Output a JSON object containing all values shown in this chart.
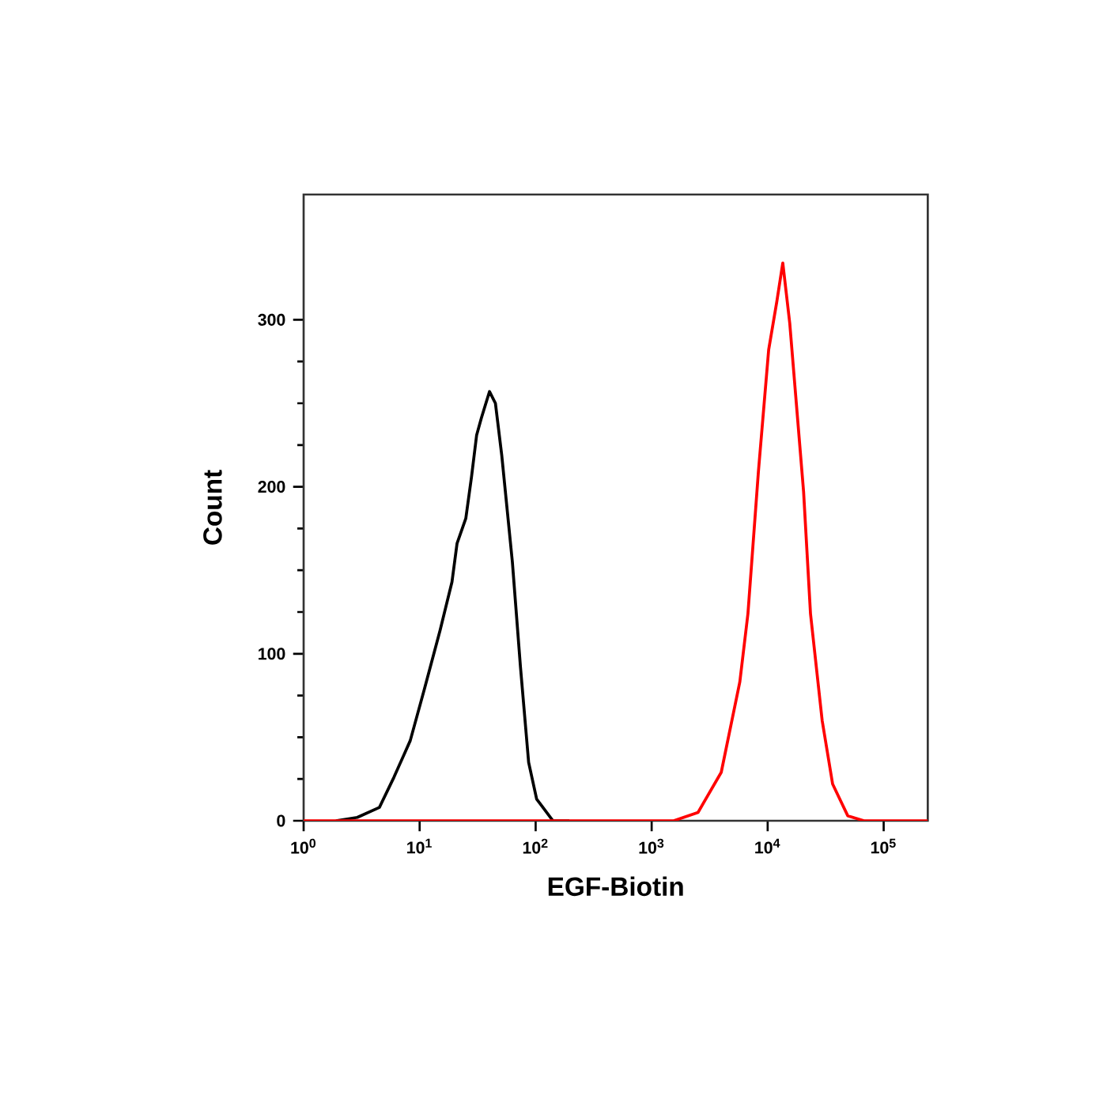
{
  "chart_data": {
    "type": "line",
    "xlabel": "EGF-Biotin",
    "ylabel": "Count",
    "log": "x",
    "xlim": [
      1,
      240000
    ],
    "ylim": [
      0,
      375
    ],
    "xticks": [
      {
        "value": 1,
        "label": "10$^{0}$"
      },
      {
        "value": 10,
        "label": "10$^{1}$"
      },
      {
        "value": 100,
        "label": "10$^{2}$"
      },
      {
        "value": 1000,
        "label": "10$^{3}$"
      },
      {
        "value": 10000,
        "label": "10$^{4}$"
      },
      {
        "value": 100000,
        "label": "10$^{5}$"
      }
    ],
    "yticks": [
      0,
      100,
      200,
      300
    ],
    "marker": "none",
    "line_style": "solid",
    "series": [
      {
        "color": "#000000",
        "x": [
          1.9,
          2.9,
          4.5,
          6.0,
          8.3,
          11,
          15,
          19,
          21,
          25,
          28,
          31,
          34,
          40,
          45,
          51,
          63,
          74,
          87,
          102,
          141,
          195
        ],
        "values": [
          0,
          2,
          8,
          26,
          48,
          79,
          114,
          143,
          166,
          181,
          206,
          231,
          241,
          257,
          250,
          219,
          155,
          92,
          35,
          13,
          0,
          0
        ]
      },
      {
        "color": "#ff0000",
        "x": [
          1,
          1550,
          2510,
          3980,
          5750,
          6760,
          8320,
          10200,
          12000,
          13500,
          15500,
          20400,
          23400,
          29500,
          36300,
          49000,
          67600,
          240000
        ],
        "values": [
          0,
          0,
          5,
          29,
          83,
          124,
          209,
          282,
          311,
          334,
          298,
          197,
          124,
          60,
          22,
          3,
          0,
          0
        ]
      }
    ]
  }
}
